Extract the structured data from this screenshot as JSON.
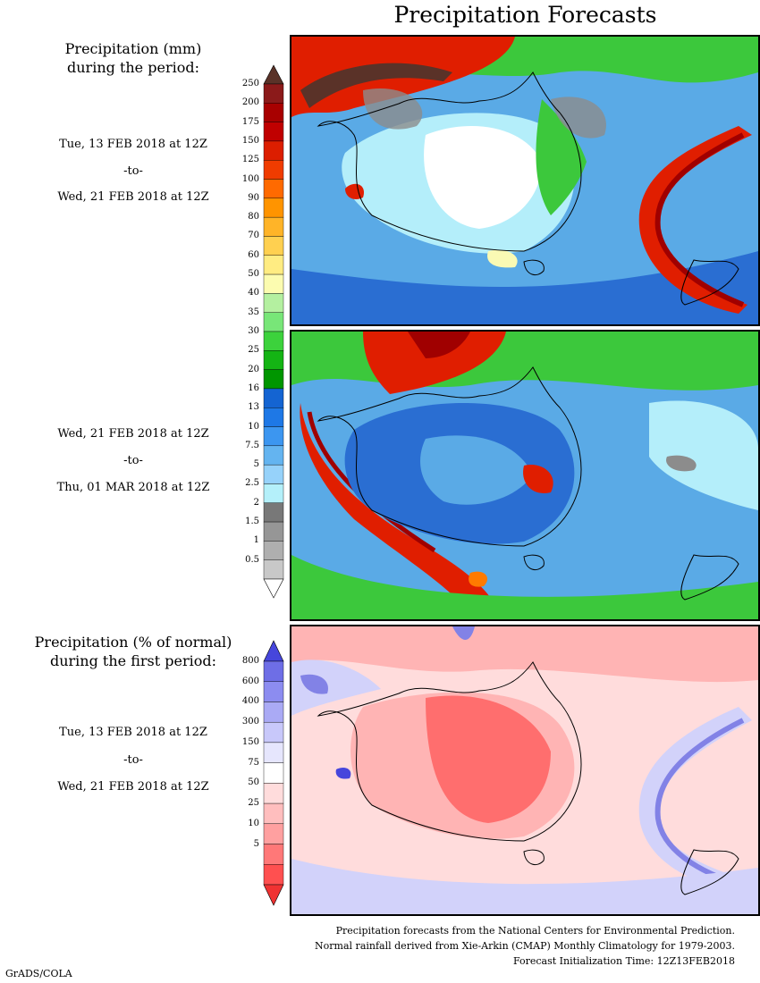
{
  "title": "Precipitation Forecasts",
  "left_labels": {
    "mm_title": [
      "Precipitation (mm)",
      "during the period:"
    ],
    "pct_title": [
      "Precipitation (% of normal)",
      "during the first period:"
    ]
  },
  "periods": [
    {
      "start": "Tue, 13 FEB 2018 at 12Z",
      "to": "-to-",
      "end": "Wed, 21 FEB 2018 at 12Z"
    },
    {
      "start": "Wed, 21 FEB 2018 at 12Z",
      "to": "-to-",
      "end": "Thu, 01 MAR 2018 at 12Z"
    },
    {
      "start": "Tue, 13 FEB 2018 at 12Z",
      "to": "-to-",
      "end": "Wed, 21 FEB 2018 at 12Z"
    }
  ],
  "mm_scale": {
    "labels": [
      "250",
      "200",
      "175",
      "150",
      "125",
      "100",
      "90",
      "80",
      "70",
      "60",
      "50",
      "40",
      "35",
      "30",
      "25",
      "20",
      "16",
      "13",
      "10",
      "7.5",
      "5",
      "2.5",
      "2",
      "1.5",
      "1",
      "0.5"
    ],
    "colors": [
      "#8b1a1a",
      "#a80000",
      "#c00000",
      "#dc1e00",
      "#f03c00",
      "#ff6a00",
      "#ff9400",
      "#ffb428",
      "#ffd050",
      "#ffec82",
      "#fcfcb0",
      "#b4f0a0",
      "#78e678",
      "#3cd23c",
      "#14b414",
      "#009600",
      "#1464d2",
      "#1e78e6",
      "#3c96f0",
      "#64b4f0",
      "#96d2fa",
      "#b4f0fa",
      "#787878",
      "#969696",
      "#afafaf",
      "#c8c8c8"
    ],
    "top_color": "#5a3228",
    "bottom_color": "#ffffff"
  },
  "pct_scale": {
    "labels": [
      "800",
      "600",
      "400",
      "300",
      "150",
      "75",
      "50",
      "25",
      "10",
      "5"
    ],
    "colors": [
      "#6e6ee6",
      "#8c8cf0",
      "#aaaaf5",
      "#c8c8fa",
      "#e6e6fd",
      "#ffffff",
      "#ffdcdc",
      "#ffbebe",
      "#ffa0a0",
      "#ff7878",
      "#ff5050"
    ],
    "top_color": "#4646dc",
    "bottom_color": "#f03232"
  },
  "footer": [
    "Precipitation forecasts from the National Centers for Environmental Prediction.",
    "Normal rainfall derived from Xie-Arkin (CMAP) Monthly Climatology for 1979-2003.",
    "Forecast Initialization Time: 12Z13FEB2018"
  ],
  "credit": "GrADS/COLA",
  "map_colors": {
    "ocean_blue": "#5aaae6",
    "deep_blue": "#2a6ed2",
    "light_blue": "#b4eefa",
    "green": "#3cc83c",
    "dark_green": "#14a014",
    "yellow": "#fafab4",
    "orange": "#ff7a00",
    "red": "#e01e00",
    "dark_red": "#a00000",
    "brown": "#5a3228",
    "grey": "#8c8c8c",
    "pale_red": "#ffb4b4",
    "mid_red": "#ff6e6e",
    "pale_blue": "#d2d2fa",
    "mid_blue": "#8282e6"
  }
}
